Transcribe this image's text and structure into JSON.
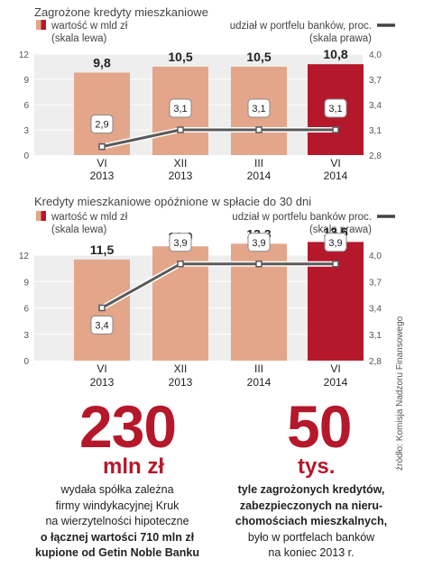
{
  "chart_data": [
    {
      "type": "bar",
      "title": "Zagrożone kredyty mieszkaniowe",
      "legend_left": [
        "wartość w mld zł",
        "(skala lewa)"
      ],
      "legend_right": [
        "udział w portfelu banków, proc.",
        "(skala prawa)"
      ],
      "categories": [
        [
          "VI",
          "2013"
        ],
        [
          "XII",
          "2013"
        ],
        [
          "III",
          "2014"
        ],
        [
          "VI",
          "2014"
        ]
      ],
      "series": [
        {
          "name": "wartość w mld zł",
          "values": [
            9.8,
            10.5,
            10.5,
            10.8
          ],
          "labels": [
            "9,8",
            "10,5",
            "10,5",
            "10,8"
          ]
        },
        {
          "name": "udział w portfelu banków, proc.",
          "values": [
            2.9,
            3.1,
            3.1,
            3.1
          ],
          "labels": [
            "2,9",
            "3,1",
            "3,1",
            "3,1"
          ]
        }
      ],
      "y_left": {
        "range": [
          0,
          12
        ],
        "ticks": [
          "0",
          "3",
          "6",
          "9",
          "12"
        ]
      },
      "y_right": {
        "range": [
          2.8,
          4.0
        ],
        "ticks": [
          "2,8",
          "3,1",
          "3,4",
          "3,7",
          "4,0"
        ]
      }
    },
    {
      "type": "bar",
      "title": "Kredyty mieszkaniowe opóźnione w spłacie do 30 dni",
      "legend_left": [
        "wartość w mld zł",
        "(skala lewa)"
      ],
      "legend_right": [
        "udział w portfelu banków proc.",
        "(skala prawa)"
      ],
      "categories": [
        [
          "VI",
          "2013"
        ],
        [
          "XII",
          "2013"
        ],
        [
          "III",
          "2014"
        ],
        [
          "VI",
          "2014"
        ]
      ],
      "series": [
        {
          "name": "wartość w mld zł",
          "values": [
            11.5,
            13.0,
            13.3,
            13.5
          ],
          "labels": [
            "11,5",
            "13,0",
            "13,3",
            "13,5"
          ]
        },
        {
          "name": "udział w portfelu banków proc.",
          "values": [
            3.4,
            3.9,
            3.9,
            3.9
          ],
          "labels": [
            "3,4",
            "3,9",
            "3,9",
            "3,9"
          ]
        }
      ],
      "y_left": {
        "range": [
          0,
          12
        ],
        "ticks": [
          "0",
          "3",
          "6",
          "9",
          "12"
        ]
      },
      "y_right": {
        "range": [
          2.8,
          4.0
        ],
        "ticks": [
          "2,8",
          "3,1",
          "3,4",
          "3,7",
          "4,0"
        ]
      }
    }
  ],
  "stats": {
    "left": {
      "number": "230",
      "unit": "mln zł",
      "lines": [
        "wydała spółka zależna",
        "firmy windykacyjnej Kruk",
        "na wierzytelności hipoteczne",
        "o łącznej wartości 710 mln zł",
        "kupione od Getin Noble Banku"
      ]
    },
    "right": {
      "number": "50",
      "unit": "tys.",
      "lines": [
        "tyle zagrożonych kredytów,",
        "zabezpieczonych na nieru-",
        "chomościach mieszkalnych,",
        "było w portfelach banków",
        "na koniec 2013 r."
      ]
    }
  },
  "source": "źródło: Komisja Nadzoru Finansowego",
  "colors": {
    "bar": "#e3a68a",
    "bar_highlight": "#b5182b",
    "bg": "#eeeeee",
    "line": "#5a5a5a",
    "accent": "#b5182b"
  }
}
